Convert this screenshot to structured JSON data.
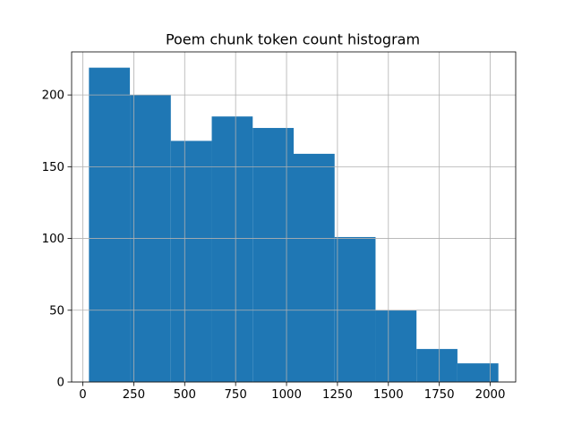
{
  "chart_data": {
    "type": "bar",
    "subtype": "histogram",
    "title": "Poem chunk token count histogram",
    "xlabel": "",
    "ylabel": "",
    "xlim": [
      -55,
      2125
    ],
    "ylim": [
      0,
      230
    ],
    "xticks": [
      0,
      250,
      500,
      750,
      1000,
      1250,
      1500,
      1750,
      2000
    ],
    "yticks": [
      0,
      50,
      100,
      150,
      200
    ],
    "grid": true,
    "bins": [
      {
        "x0": 30,
        "x1": 231,
        "count": 219
      },
      {
        "x0": 231,
        "x1": 432,
        "count": 200
      },
      {
        "x0": 432,
        "x1": 633,
        "count": 168
      },
      {
        "x0": 633,
        "x1": 834,
        "count": 185
      },
      {
        "x0": 834,
        "x1": 1035,
        "count": 177
      },
      {
        "x0": 1035,
        "x1": 1236,
        "count": 159
      },
      {
        "x0": 1236,
        "x1": 1437,
        "count": 101
      },
      {
        "x0": 1437,
        "x1": 1638,
        "count": 50
      },
      {
        "x0": 1638,
        "x1": 1839,
        "count": 23
      },
      {
        "x0": 1839,
        "x1": 2040,
        "count": 13
      }
    ],
    "colors": {
      "bar": "#1f77b4",
      "grid": "#b0b0b0",
      "axis": "#000000",
      "text": "#000000"
    }
  }
}
